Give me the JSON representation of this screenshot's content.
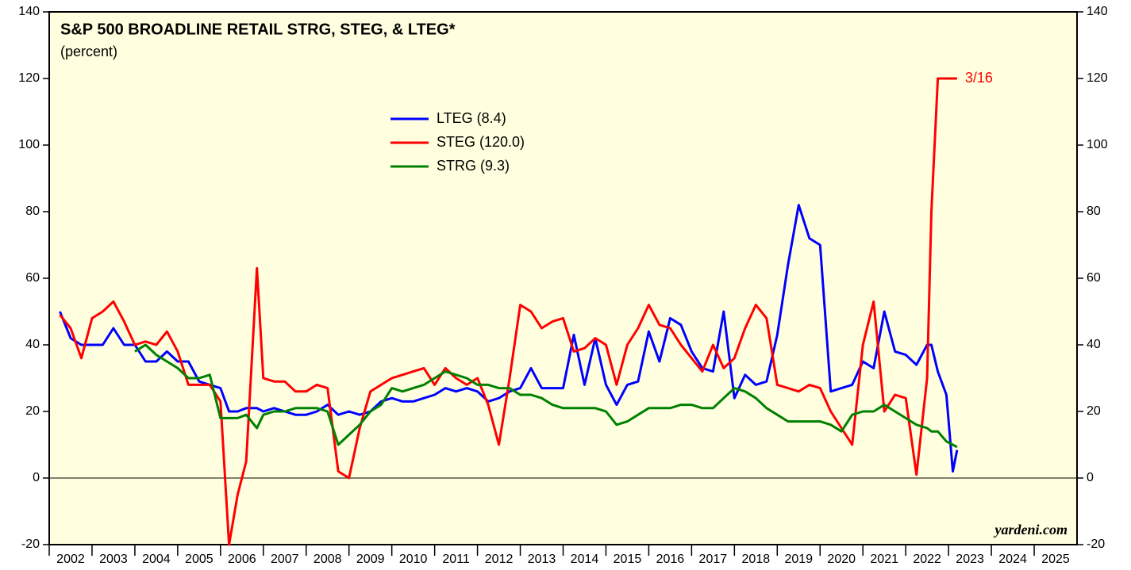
{
  "chart_data": {
    "type": "line",
    "title": "S&P 500 BROADLINE RETAIL STRG, STEG, & LTEG*",
    "subtitle": "(percent)",
    "annotation": "3/16",
    "source": "yardeni.com",
    "x": [
      2002.25,
      2002.5,
      2002.75,
      2003.0,
      2003.25,
      2003.5,
      2003.75,
      2004.0,
      2004.25,
      2004.5,
      2004.75,
      2005.0,
      2005.25,
      2005.5,
      2005.75,
      2006.0,
      2006.2,
      2006.4,
      2006.6,
      2006.85,
      2007.0,
      2007.25,
      2007.5,
      2007.75,
      2008.0,
      2008.25,
      2008.5,
      2008.75,
      2009.0,
      2009.25,
      2009.5,
      2009.75,
      2010.0,
      2010.25,
      2010.5,
      2010.75,
      2011.0,
      2011.25,
      2011.5,
      2011.75,
      2012.0,
      2012.25,
      2012.5,
      2012.75,
      2013.0,
      2013.25,
      2013.5,
      2013.75,
      2014.0,
      2014.25,
      2014.5,
      2014.75,
      2015.0,
      2015.25,
      2015.5,
      2015.75,
      2016.0,
      2016.25,
      2016.5,
      2016.75,
      2017.0,
      2017.25,
      2017.5,
      2017.75,
      2018.0,
      2018.25,
      2018.5,
      2018.75,
      2019.0,
      2019.25,
      2019.5,
      2019.75,
      2020.0,
      2020.25,
      2020.5,
      2020.75,
      2021.0,
      2021.25,
      2021.5,
      2021.75,
      2022.0,
      2022.25,
      2022.5,
      2022.6,
      2022.75,
      2022.95,
      2023.1,
      2023.2
    ],
    "series": [
      {
        "name": "LTEG (8.4)",
        "color": "#0000ff",
        "values": [
          50,
          42,
          40,
          40,
          40,
          45,
          40,
          40,
          35,
          35,
          38,
          35,
          35,
          29,
          28,
          27,
          20,
          20,
          21,
          21,
          20,
          21,
          20,
          19,
          19,
          20,
          22,
          19,
          20,
          19,
          20,
          23,
          24,
          23,
          23,
          24,
          25,
          27,
          26,
          27,
          26,
          23,
          24,
          26,
          27,
          33,
          27,
          27,
          27,
          43,
          28,
          42,
          28,
          22,
          28,
          29,
          44,
          35,
          48,
          46,
          38,
          33,
          32,
          50,
          24,
          31,
          28,
          29,
          43,
          64,
          82,
          72,
          70,
          26,
          27,
          28,
          35,
          33,
          50,
          38,
          37,
          34,
          40,
          40,
          32,
          25,
          2,
          8.4
        ]
      },
      {
        "name": "STEG (120.0)",
        "color": "#ff0000",
        "values": [
          49,
          45,
          36,
          48,
          50,
          53,
          47,
          40,
          41,
          40,
          44,
          38,
          28,
          28,
          28,
          23,
          -20,
          -5,
          5,
          63,
          30,
          29,
          29,
          26,
          26,
          28,
          27,
          2,
          0,
          15,
          26,
          28,
          30,
          31,
          32,
          33,
          28,
          33,
          30,
          28,
          30,
          22,
          10,
          30,
          52,
          50,
          45,
          47,
          48,
          38,
          39,
          42,
          40,
          28,
          40,
          45,
          52,
          46,
          45,
          40,
          36,
          32,
          40,
          33,
          36,
          45,
          52,
          48,
          28,
          27,
          26,
          28,
          27,
          20,
          15,
          10,
          40,
          53,
          20,
          25,
          24,
          1,
          30,
          80,
          120,
          120,
          120,
          120
        ]
      },
      {
        "name": "STRG (9.3)",
        "color": "#008000",
        "values": [
          null,
          null,
          null,
          null,
          null,
          null,
          null,
          38,
          40,
          37,
          35,
          33,
          30,
          30,
          31,
          18,
          18,
          18,
          19,
          15,
          19,
          20,
          20,
          21,
          21,
          21,
          20,
          10,
          13,
          16,
          20,
          22,
          27,
          26,
          27,
          28,
          30,
          32,
          31,
          30,
          28,
          28,
          27,
          27,
          25,
          25,
          24,
          22,
          21,
          21,
          21,
          21,
          20,
          16,
          17,
          19,
          21,
          21,
          21,
          22,
          22,
          21,
          21,
          24,
          27,
          26,
          24,
          21,
          19,
          17,
          17,
          17,
          17,
          16,
          14,
          19,
          20,
          20,
          22,
          20,
          18,
          16,
          15,
          14,
          14,
          11,
          10,
          9.3
        ]
      }
    ],
    "xlim": [
      2002,
      2026
    ],
    "xticks": [
      2002,
      2003,
      2004,
      2005,
      2006,
      2007,
      2008,
      2009,
      2010,
      2011,
      2012,
      2013,
      2014,
      2015,
      2016,
      2017,
      2018,
      2019,
      2020,
      2021,
      2022,
      2023,
      2024,
      2025
    ],
    "ylim": [
      -20,
      140
    ],
    "yticks": [
      -20,
      0,
      20,
      40,
      60,
      80,
      100,
      120,
      140
    ],
    "zero_line": true
  }
}
